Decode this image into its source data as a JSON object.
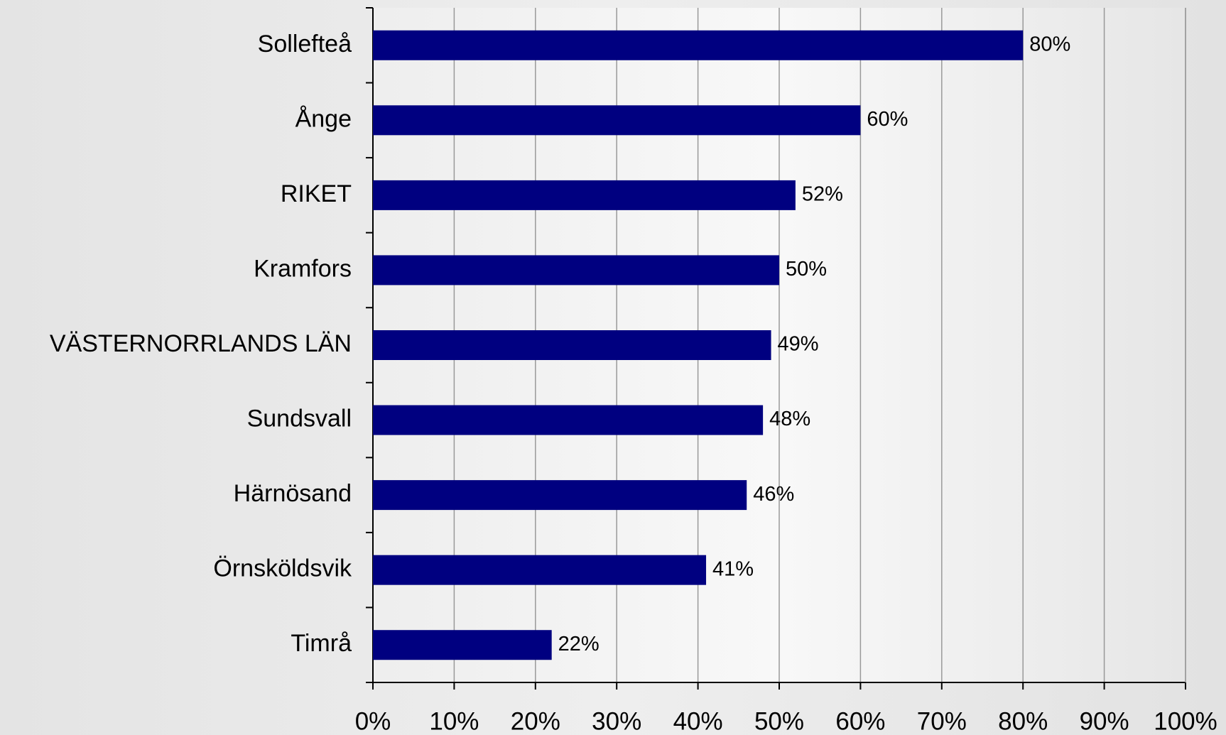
{
  "chart_data": {
    "type": "bar",
    "orientation": "horizontal",
    "categories": [
      "Sollefteå",
      "Ånge",
      "RIKET",
      "Kramfors",
      "VÄSTERNORRLANDS LÄN",
      "Sundsvall",
      "Härnösand",
      "Örnsköldsvik",
      "Timrå"
    ],
    "values": [
      80,
      60,
      52,
      50,
      49,
      48,
      46,
      41,
      22
    ],
    "value_labels": [
      "80%",
      "60%",
      "52%",
      "50%",
      "49%",
      "48%",
      "46%",
      "41%",
      "22%"
    ],
    "color": "#000080",
    "xlim": [
      0,
      100
    ],
    "xticks": [
      {
        "value": 0,
        "label": "0%"
      },
      {
        "value": 10,
        "label": "10%"
      },
      {
        "value": 20,
        "label": "20%"
      },
      {
        "value": 30,
        "label": "30%"
      },
      {
        "value": 40,
        "label": "40%"
      },
      {
        "value": 50,
        "label": "50%"
      },
      {
        "value": 60,
        "label": "60%"
      },
      {
        "value": 70,
        "label": "70%"
      },
      {
        "value": 80,
        "label": "80%"
      },
      {
        "value": 90,
        "label": "90%"
      },
      {
        "value": 100,
        "label": "100%"
      }
    ],
    "grid": true
  }
}
